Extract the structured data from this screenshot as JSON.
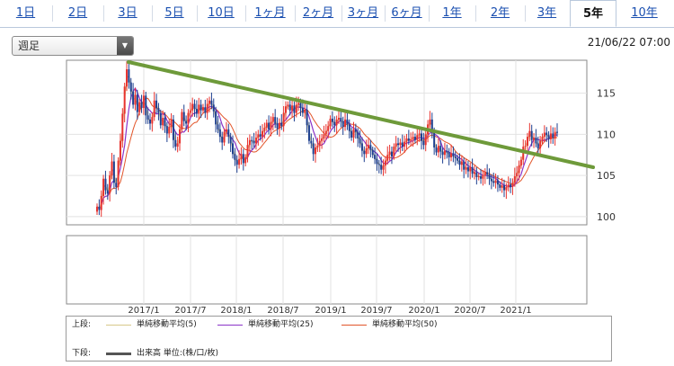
{
  "tabs": [
    {
      "label": "1日",
      "active": false
    },
    {
      "label": "2日",
      "active": false
    },
    {
      "label": "3日",
      "active": false
    },
    {
      "label": "5日",
      "active": false
    },
    {
      "label": "10日",
      "active": false
    },
    {
      "label": "1ヶ月",
      "active": false
    },
    {
      "label": "2ヶ月",
      "active": false
    },
    {
      "label": "3ヶ月",
      "active": false
    },
    {
      "label": "6ヶ月",
      "active": false
    },
    {
      "label": "1年",
      "active": false
    },
    {
      "label": "2年",
      "active": false
    },
    {
      "label": "3年",
      "active": false
    },
    {
      "label": "5年",
      "active": true
    },
    {
      "label": "10年",
      "active": false
    }
  ],
  "period_select": {
    "value": "週足"
  },
  "timestamp": "21/06/22 07:00",
  "legend": {
    "upper_label": "上段:",
    "lower_label": "下段:",
    "ma5": "単純移動平均(5)",
    "ma25": "単純移動平均(25)",
    "ma50": "単純移動平均(50)",
    "volume": "出来高 単位:(株/口/枚)"
  },
  "colors": {
    "up": "#e8322e",
    "down": "#1d3f8f",
    "ma5": "#d7c98a",
    "ma25": "#8b34c9",
    "ma50": "#e2552a",
    "trend": "#6e9a3a"
  },
  "chart_data": {
    "type": "candlestick",
    "x_ticks": [
      "2017/1",
      "2017/7",
      "2018/1",
      "2018/7",
      "2019/1",
      "2019/7",
      "2020/1",
      "2020/7",
      "2021/1"
    ],
    "y_ticks": [
      100,
      105,
      110,
      115
    ],
    "ylim": [
      99,
      119
    ],
    "series_close": [
      101.2,
      100.8,
      102.5,
      104.6,
      103.2,
      102.8,
      105.0,
      106.7,
      104.1,
      103.6,
      106.8,
      109.2,
      112.5,
      115.8,
      117.9,
      116.3,
      115.2,
      113.6,
      114.8,
      112.7,
      113.9,
      113.2,
      114.7,
      112.3,
      111.8,
      111.3,
      112.1,
      114.1,
      113.2,
      112.6,
      111.1,
      112.0,
      111.0,
      110.1,
      110.9,
      111.8,
      109.3,
      108.5,
      108.9,
      110.6,
      112.7,
      111.6,
      111.3,
      112.6,
      112.9,
      113.7,
      113.1,
      112.5,
      113.6,
      112.9,
      113.3,
      112.6,
      113.7,
      114.1,
      113.6,
      112.8,
      111.2,
      110.6,
      109.7,
      109.0,
      110.3,
      110.6,
      109.7,
      108.9,
      107.6,
      106.9,
      106.3,
      107.0,
      107.6,
      106.5,
      107.2,
      108.7,
      109.3,
      109.2,
      108.9,
      109.6,
      110.0,
      109.7,
      110.4,
      110.8,
      111.4,
      110.6,
      111.5,
      112.1,
      111.3,
      110.7,
      111.4,
      111.0,
      112.6,
      113.4,
      113.6,
      112.9,
      113.5,
      112.6,
      113.6,
      113.8,
      113.2,
      112.6,
      113.0,
      111.1,
      109.2,
      108.9,
      107.6,
      108.4,
      108.6,
      109.2,
      109.5,
      110.0,
      110.4,
      111.0,
      111.9,
      111.5,
      111.1,
      111.8,
      112.0,
      111.6,
      110.9,
      111.8,
      111.2,
      110.4,
      109.6,
      110.6,
      110.3,
      109.5,
      108.9,
      108.0,
      107.6,
      108.3,
      108.7,
      108.1,
      107.5,
      107.0,
      106.4,
      106.3,
      105.7,
      106.2,
      106.8,
      107.5,
      107.9,
      107.3,
      108.5,
      108.9,
      108.7,
      109.0,
      108.5,
      109.1,
      109.5,
      109.2,
      109.4,
      109.7,
      109.3,
      109.9,
      110.1,
      109.2,
      108.7,
      110.0,
      111.2,
      111.8,
      110.2,
      108.4,
      107.8,
      108.6,
      107.9,
      107.5,
      108.0,
      107.8,
      107.2,
      107.7,
      107.3,
      107.1,
      106.8,
      106.3,
      106.7,
      105.7,
      106.0,
      105.5,
      106.0,
      105.2,
      105.4,
      104.8,
      104.9,
      104.6,
      105.0,
      105.4,
      105.1,
      104.6,
      104.3,
      104.1,
      104.4,
      103.9,
      103.5,
      103.8,
      103.2,
      103.6,
      103.9,
      103.6,
      104.1,
      104.9,
      105.3,
      106.2,
      106.9,
      108.5,
      108.6,
      109.7,
      110.4,
      109.3,
      109.6,
      108.9,
      108.3,
      109.2,
      109.7,
      110.2,
      109.9,
      109.4,
      110.1,
      109.6,
      110.3,
      110.2
    ],
    "series": [
      {
        "name": "単純移動平均(5)"
      },
      {
        "name": "単純移動平均(25)"
      },
      {
        "name": "単純移動平均(50)"
      }
    ]
  }
}
